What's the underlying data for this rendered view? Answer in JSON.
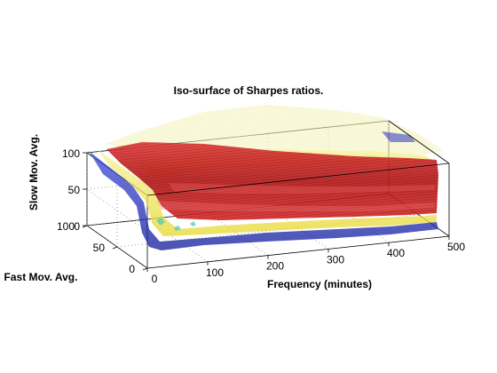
{
  "chart_data": {
    "type": "isosurface",
    "title": "Iso-surface of Sharpes ratios.",
    "xlabel": "Frequency (minutes)",
    "ylabel": "Fast Mov. Avg.",
    "zlabel": "Slow Mov. Avg.",
    "xlim": [
      0,
      500
    ],
    "ylim": [
      0,
      100
    ],
    "zlim": [
      0,
      100
    ],
    "xticks": [
      0,
      100,
      200,
      300,
      400,
      500
    ],
    "yticks": [
      0,
      50,
      100
    ],
    "zticks": [
      0,
      50,
      100
    ],
    "grid": true,
    "series": [
      {
        "color": "#1a1ac8",
        "opacity": 0.75
      },
      {
        "color": "#e8e23a",
        "opacity": 0.7
      },
      {
        "color": "#c81e1e",
        "opacity": 0.85
      },
      {
        "color": "#f2f0b4",
        "opacity": 0.55
      }
    ]
  }
}
